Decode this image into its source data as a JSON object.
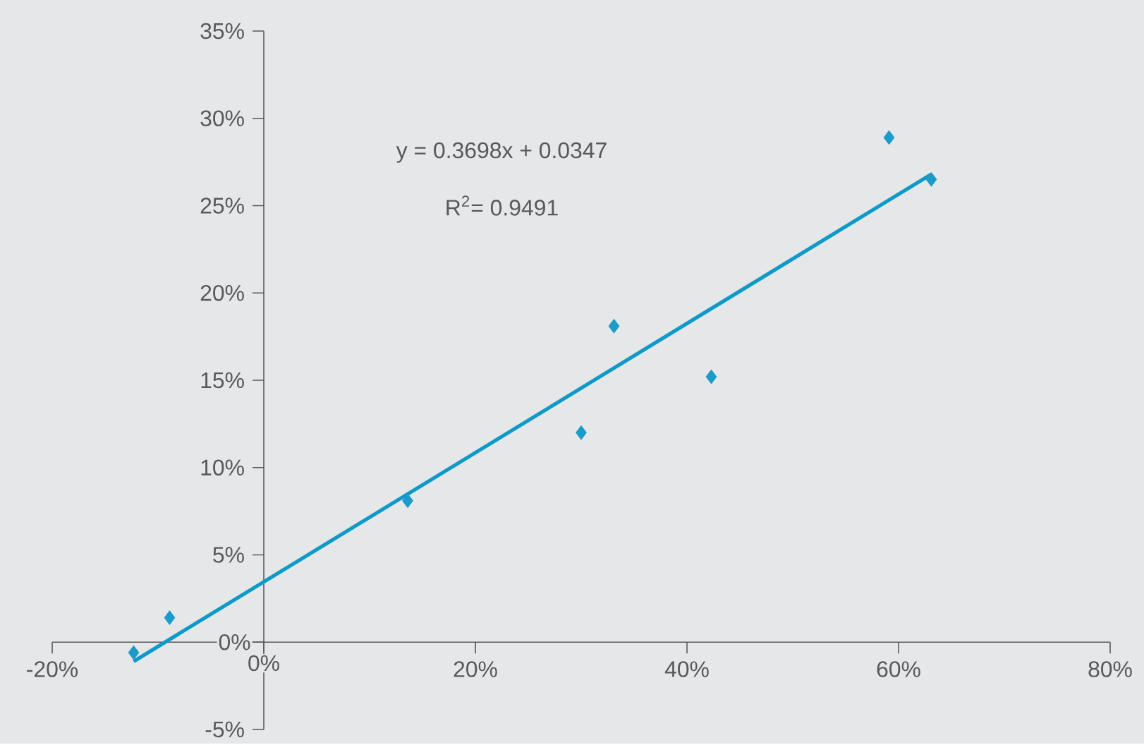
{
  "chart_data": {
    "type": "scatter",
    "xlim": [
      -20,
      80
    ],
    "ylim": [
      -5,
      35
    ],
    "xticks": [
      {
        "value": -20,
        "label": "-20%"
      },
      {
        "value": 0,
        "label": "0%"
      },
      {
        "value": 20,
        "label": "20%"
      },
      {
        "value": 40,
        "label": "40%"
      },
      {
        "value": 60,
        "label": "60%"
      },
      {
        "value": 80,
        "label": "80%"
      }
    ],
    "yticks": [
      {
        "value": -5,
        "label": "-5%"
      },
      {
        "value": 0,
        "label": "0%"
      },
      {
        "value": 5,
        "label": "5%"
      },
      {
        "value": 10,
        "label": "10%"
      },
      {
        "value": 15,
        "label": "15%"
      },
      {
        "value": 20,
        "label": "20%"
      },
      {
        "value": 25,
        "label": "25%"
      },
      {
        "value": 30,
        "label": "30%"
      },
      {
        "value": 35,
        "label": "35%"
      }
    ],
    "series": [
      {
        "color": "#1a9bc9",
        "marker": "diamond",
        "x": [
          -12.3,
          -8.9,
          13.6,
          30.0,
          33.1,
          42.3,
          59.1,
          63.1
        ],
        "values": [
          -0.6,
          1.4,
          8.1,
          12.0,
          18.1,
          15.2,
          28.9,
          26.5
        ]
      },
      {
        "type": "line",
        "color": "#0e9ac9",
        "marker": "none",
        "line_style": "solid",
        "x": [
          -12.3,
          63.1
        ],
        "values": [
          -1.1,
          26.8
        ]
      }
    ],
    "annotations": [
      "y = 0.3698x + 0.0347",
      "R$^{2}$= 0.9491"
    ]
  }
}
